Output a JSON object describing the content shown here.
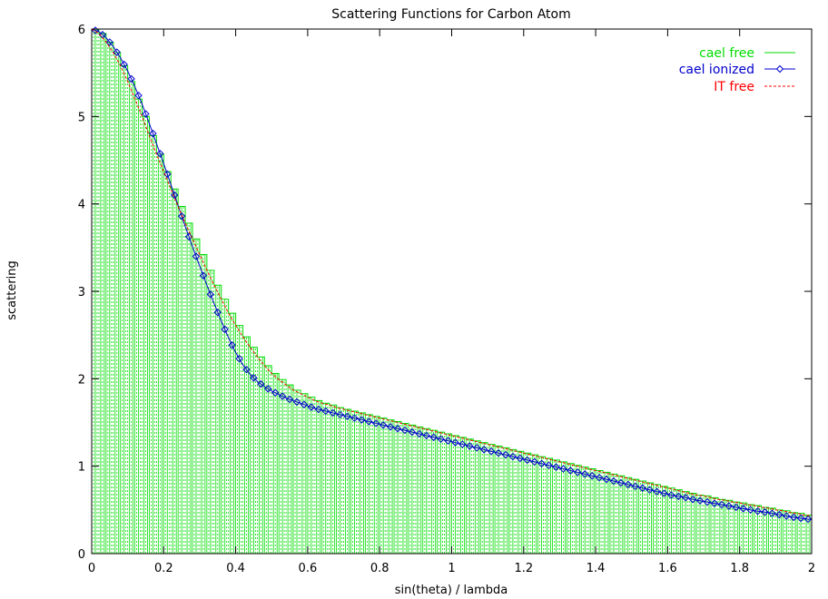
{
  "chart_data": {
    "type": "line",
    "title": "Scattering Functions for Carbon Atom",
    "xlabel": "sin(theta) / lambda",
    "ylabel": "scattering",
    "xlim": [
      0,
      2
    ],
    "ylim": [
      0,
      6
    ],
    "x_ticks": [
      "0",
      "0.2",
      "0.4",
      "0.6",
      "0.8",
      "1",
      "1.2",
      "1.4",
      "1.6",
      "1.8",
      "2"
    ],
    "y_ticks": [
      "0",
      "1",
      "2",
      "3",
      "4",
      "5",
      "6"
    ],
    "grid": false,
    "legend_position": "top-right",
    "x_step": 0.02,
    "series": [
      {
        "name": "cael free",
        "color": "#00dd00",
        "style": "steps-impulses",
        "values": [
          6.0,
          5.95,
          5.85,
          5.73,
          5.58,
          5.4,
          5.2,
          5.0,
          4.78,
          4.57,
          4.37,
          4.17,
          3.97,
          3.78,
          3.6,
          3.42,
          3.24,
          3.07,
          2.91,
          2.75,
          2.61,
          2.48,
          2.36,
          2.25,
          2.15,
          2.06,
          1.99,
          1.93,
          1.87,
          1.83,
          1.79,
          1.75,
          1.72,
          1.7,
          1.67,
          1.65,
          1.63,
          1.61,
          1.59,
          1.57,
          1.55,
          1.53,
          1.51,
          1.49,
          1.47,
          1.45,
          1.43,
          1.41,
          1.39,
          1.37,
          1.35,
          1.33,
          1.31,
          1.29,
          1.27,
          1.25,
          1.23,
          1.21,
          1.19,
          1.17,
          1.15,
          1.13,
          1.11,
          1.09,
          1.07,
          1.05,
          1.03,
          1.01,
          0.99,
          0.97,
          0.95,
          0.93,
          0.91,
          0.89,
          0.87,
          0.85,
          0.83,
          0.81,
          0.79,
          0.77,
          0.75,
          0.73,
          0.71,
          0.69,
          0.67,
          0.66,
          0.64,
          0.62,
          0.61,
          0.59,
          0.58,
          0.56,
          0.55,
          0.53,
          0.52,
          0.5,
          0.49,
          0.47,
          0.46,
          0.44,
          0.43
        ]
      },
      {
        "name": "cael ionized",
        "color": "#0000cc",
        "style": "line-diamonds",
        "values": [
          6.0,
          5.97,
          5.9,
          5.8,
          5.67,
          5.52,
          5.34,
          5.14,
          4.92,
          4.69,
          4.46,
          4.22,
          3.98,
          3.74,
          3.51,
          3.29,
          3.07,
          2.86,
          2.66,
          2.47,
          2.3,
          2.16,
          2.05,
          1.97,
          1.91,
          1.86,
          1.82,
          1.78,
          1.75,
          1.72,
          1.69,
          1.66,
          1.64,
          1.62,
          1.6,
          1.58,
          1.56,
          1.54,
          1.52,
          1.5,
          1.48,
          1.46,
          1.44,
          1.42,
          1.4,
          1.38,
          1.36,
          1.34,
          1.32,
          1.3,
          1.28,
          1.26,
          1.24,
          1.22,
          1.2,
          1.18,
          1.16,
          1.14,
          1.12,
          1.1,
          1.08,
          1.06,
          1.04,
          1.02,
          1.0,
          0.98,
          0.96,
          0.94,
          0.92,
          0.9,
          0.88,
          0.86,
          0.84,
          0.82,
          0.8,
          0.78,
          0.76,
          0.74,
          0.72,
          0.7,
          0.68,
          0.66,
          0.65,
          0.63,
          0.61,
          0.6,
          0.58,
          0.57,
          0.55,
          0.54,
          0.52,
          0.51,
          0.49,
          0.48,
          0.47,
          0.45,
          0.44,
          0.42,
          0.41,
          0.4,
          0.39
        ]
      },
      {
        "name": "IT free",
        "color": "#ff0000",
        "style": "dashed",
        "values": [
          6.0,
          5.95,
          5.85,
          5.73,
          5.58,
          5.4,
          5.2,
          5.0,
          4.78,
          4.57,
          4.37,
          4.17,
          3.97,
          3.78,
          3.6,
          3.42,
          3.24,
          3.07,
          2.91,
          2.75,
          2.61,
          2.48,
          2.36,
          2.25,
          2.15,
          2.06,
          1.99,
          1.93,
          1.87,
          1.83,
          1.79,
          1.75,
          1.72,
          1.7,
          1.67,
          1.65,
          1.63,
          1.61,
          1.59,
          1.57,
          1.55,
          1.53,
          1.51,
          1.49,
          1.47,
          1.45,
          1.43,
          1.41,
          1.39,
          1.37,
          1.35,
          1.33,
          1.31,
          1.29,
          1.27,
          1.25,
          1.23,
          1.21,
          1.19,
          1.17,
          1.15,
          1.13,
          1.11,
          1.09,
          1.07,
          1.05,
          1.03,
          1.01,
          0.99,
          0.97,
          0.95,
          0.93,
          0.91,
          0.89,
          0.87,
          0.85,
          0.83,
          0.81,
          0.79,
          0.77,
          0.75,
          0.73,
          0.71,
          0.69,
          0.67,
          0.66,
          0.64,
          0.62,
          0.61,
          0.59,
          0.58,
          0.56,
          0.55,
          0.53,
          0.52,
          0.5,
          0.49,
          0.47,
          0.46,
          0.44,
          0.43
        ]
      }
    ]
  }
}
